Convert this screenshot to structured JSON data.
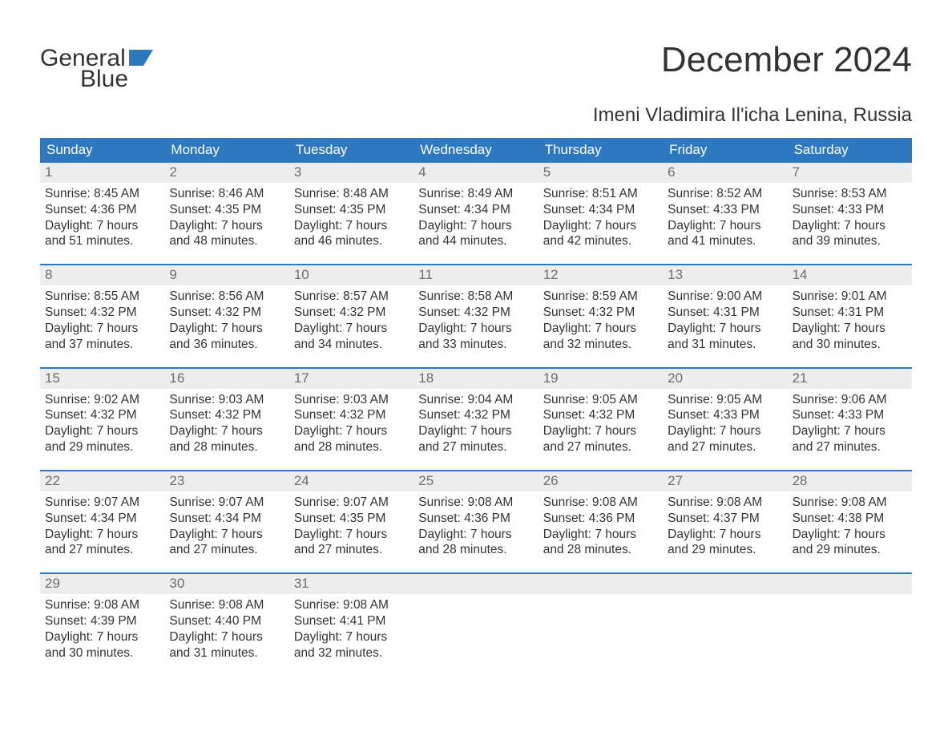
{
  "brand": {
    "name_part1": "General",
    "name_part2": "Blue",
    "text_color": "#333333",
    "accent_color": "#2e78bf"
  },
  "title": "December 2024",
  "location": "Imeni Vladimira Il'icha Lenina, Russia",
  "colors": {
    "header_bg": "#2e78bf",
    "header_text": "#ffffff",
    "daynum_bg": "#ededed",
    "daynum_text": "#6d6d6d",
    "body_text": "#333333",
    "page_bg": "#ffffff",
    "week_sep": "#2e78bf"
  },
  "typography": {
    "title_fontsize": 44,
    "subtitle_fontsize": 24,
    "dow_fontsize": 17,
    "daynum_fontsize": 17,
    "body_fontsize": 15.5,
    "font_family": "Arial"
  },
  "days_of_week": [
    "Sunday",
    "Monday",
    "Tuesday",
    "Wednesday",
    "Thursday",
    "Friday",
    "Saturday"
  ],
  "weeks": [
    [
      {
        "n": "1",
        "sunrise": "Sunrise: 8:45 AM",
        "sunset": "Sunset: 4:36 PM",
        "d1": "Daylight: 7 hours",
        "d2": "and 51 minutes."
      },
      {
        "n": "2",
        "sunrise": "Sunrise: 8:46 AM",
        "sunset": "Sunset: 4:35 PM",
        "d1": "Daylight: 7 hours",
        "d2": "and 48 minutes."
      },
      {
        "n": "3",
        "sunrise": "Sunrise: 8:48 AM",
        "sunset": "Sunset: 4:35 PM",
        "d1": "Daylight: 7 hours",
        "d2": "and 46 minutes."
      },
      {
        "n": "4",
        "sunrise": "Sunrise: 8:49 AM",
        "sunset": "Sunset: 4:34 PM",
        "d1": "Daylight: 7 hours",
        "d2": "and 44 minutes."
      },
      {
        "n": "5",
        "sunrise": "Sunrise: 8:51 AM",
        "sunset": "Sunset: 4:34 PM",
        "d1": "Daylight: 7 hours",
        "d2": "and 42 minutes."
      },
      {
        "n": "6",
        "sunrise": "Sunrise: 8:52 AM",
        "sunset": "Sunset: 4:33 PM",
        "d1": "Daylight: 7 hours",
        "d2": "and 41 minutes."
      },
      {
        "n": "7",
        "sunrise": "Sunrise: 8:53 AM",
        "sunset": "Sunset: 4:33 PM",
        "d1": "Daylight: 7 hours",
        "d2": "and 39 minutes."
      }
    ],
    [
      {
        "n": "8",
        "sunrise": "Sunrise: 8:55 AM",
        "sunset": "Sunset: 4:32 PM",
        "d1": "Daylight: 7 hours",
        "d2": "and 37 minutes."
      },
      {
        "n": "9",
        "sunrise": "Sunrise: 8:56 AM",
        "sunset": "Sunset: 4:32 PM",
        "d1": "Daylight: 7 hours",
        "d2": "and 36 minutes."
      },
      {
        "n": "10",
        "sunrise": "Sunrise: 8:57 AM",
        "sunset": "Sunset: 4:32 PM",
        "d1": "Daylight: 7 hours",
        "d2": "and 34 minutes."
      },
      {
        "n": "11",
        "sunrise": "Sunrise: 8:58 AM",
        "sunset": "Sunset: 4:32 PM",
        "d1": "Daylight: 7 hours",
        "d2": "and 33 minutes."
      },
      {
        "n": "12",
        "sunrise": "Sunrise: 8:59 AM",
        "sunset": "Sunset: 4:32 PM",
        "d1": "Daylight: 7 hours",
        "d2": "and 32 minutes."
      },
      {
        "n": "13",
        "sunrise": "Sunrise: 9:00 AM",
        "sunset": "Sunset: 4:31 PM",
        "d1": "Daylight: 7 hours",
        "d2": "and 31 minutes."
      },
      {
        "n": "14",
        "sunrise": "Sunrise: 9:01 AM",
        "sunset": "Sunset: 4:31 PM",
        "d1": "Daylight: 7 hours",
        "d2": "and 30 minutes."
      }
    ],
    [
      {
        "n": "15",
        "sunrise": "Sunrise: 9:02 AM",
        "sunset": "Sunset: 4:32 PM",
        "d1": "Daylight: 7 hours",
        "d2": "and 29 minutes."
      },
      {
        "n": "16",
        "sunrise": "Sunrise: 9:03 AM",
        "sunset": "Sunset: 4:32 PM",
        "d1": "Daylight: 7 hours",
        "d2": "and 28 minutes."
      },
      {
        "n": "17",
        "sunrise": "Sunrise: 9:03 AM",
        "sunset": "Sunset: 4:32 PM",
        "d1": "Daylight: 7 hours",
        "d2": "and 28 minutes."
      },
      {
        "n": "18",
        "sunrise": "Sunrise: 9:04 AM",
        "sunset": "Sunset: 4:32 PM",
        "d1": "Daylight: 7 hours",
        "d2": "and 27 minutes."
      },
      {
        "n": "19",
        "sunrise": "Sunrise: 9:05 AM",
        "sunset": "Sunset: 4:32 PM",
        "d1": "Daylight: 7 hours",
        "d2": "and 27 minutes."
      },
      {
        "n": "20",
        "sunrise": "Sunrise: 9:05 AM",
        "sunset": "Sunset: 4:33 PM",
        "d1": "Daylight: 7 hours",
        "d2": "and 27 minutes."
      },
      {
        "n": "21",
        "sunrise": "Sunrise: 9:06 AM",
        "sunset": "Sunset: 4:33 PM",
        "d1": "Daylight: 7 hours",
        "d2": "and 27 minutes."
      }
    ],
    [
      {
        "n": "22",
        "sunrise": "Sunrise: 9:07 AM",
        "sunset": "Sunset: 4:34 PM",
        "d1": "Daylight: 7 hours",
        "d2": "and 27 minutes."
      },
      {
        "n": "23",
        "sunrise": "Sunrise: 9:07 AM",
        "sunset": "Sunset: 4:34 PM",
        "d1": "Daylight: 7 hours",
        "d2": "and 27 minutes."
      },
      {
        "n": "24",
        "sunrise": "Sunrise: 9:07 AM",
        "sunset": "Sunset: 4:35 PM",
        "d1": "Daylight: 7 hours",
        "d2": "and 27 minutes."
      },
      {
        "n": "25",
        "sunrise": "Sunrise: 9:08 AM",
        "sunset": "Sunset: 4:36 PM",
        "d1": "Daylight: 7 hours",
        "d2": "and 28 minutes."
      },
      {
        "n": "26",
        "sunrise": "Sunrise: 9:08 AM",
        "sunset": "Sunset: 4:36 PM",
        "d1": "Daylight: 7 hours",
        "d2": "and 28 minutes."
      },
      {
        "n": "27",
        "sunrise": "Sunrise: 9:08 AM",
        "sunset": "Sunset: 4:37 PM",
        "d1": "Daylight: 7 hours",
        "d2": "and 29 minutes."
      },
      {
        "n": "28",
        "sunrise": "Sunrise: 9:08 AM",
        "sunset": "Sunset: 4:38 PM",
        "d1": "Daylight: 7 hours",
        "d2": "and 29 minutes."
      }
    ],
    [
      {
        "n": "29",
        "sunrise": "Sunrise: 9:08 AM",
        "sunset": "Sunset: 4:39 PM",
        "d1": "Daylight: 7 hours",
        "d2": "and 30 minutes."
      },
      {
        "n": "30",
        "sunrise": "Sunrise: 9:08 AM",
        "sunset": "Sunset: 4:40 PM",
        "d1": "Daylight: 7 hours",
        "d2": "and 31 minutes."
      },
      {
        "n": "31",
        "sunrise": "Sunrise: 9:08 AM",
        "sunset": "Sunset: 4:41 PM",
        "d1": "Daylight: 7 hours",
        "d2": "and 32 minutes."
      },
      null,
      null,
      null,
      null
    ]
  ]
}
